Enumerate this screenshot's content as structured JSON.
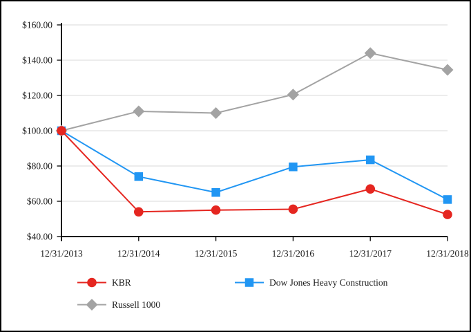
{
  "chart_data": {
    "type": "line",
    "title": "",
    "categories": [
      "12/31/2013",
      "12/31/2014",
      "12/31/2015",
      "12/31/2016",
      "12/31/2017",
      "12/31/2018"
    ],
    "series": [
      {
        "name": "KBR",
        "marker": "circle",
        "color": "#e52620",
        "values": [
          100.0,
          54.0,
          55.0,
          55.5,
          67.0,
          52.5
        ]
      },
      {
        "name": "Dow Jones Heavy Construction",
        "marker": "square",
        "color": "#2196f3",
        "values": [
          100.0,
          74.0,
          65.0,
          79.5,
          83.5,
          61.0
        ]
      },
      {
        "name": "Russell 1000",
        "marker": "diamond",
        "color": "#a3a3a3",
        "values": [
          100.0,
          111.0,
          110.0,
          120.5,
          144.0,
          134.5
        ]
      }
    ],
    "y_axis": {
      "min": 40,
      "max": 160,
      "step": 20,
      "prefix": "$",
      "decimals": 2,
      "tick_labels": [
        "$40.00",
        "$60.00",
        "$80.00",
        "$100.00",
        "$120.00",
        "$140.00",
        "$160.00"
      ]
    },
    "x_axis": {
      "tick_labels": [
        "12/31/2013",
        "12/31/2014",
        "12/31/2015",
        "12/31/2016",
        "12/31/2017",
        "12/31/2018"
      ]
    },
    "grid": true,
    "legend_position": "bottom"
  },
  "colors": {
    "grid": "#d9d9d9",
    "axis": "#000000",
    "text": "#1a1a1a",
    "background": "#ffffff",
    "frame_border": "#000000"
  }
}
